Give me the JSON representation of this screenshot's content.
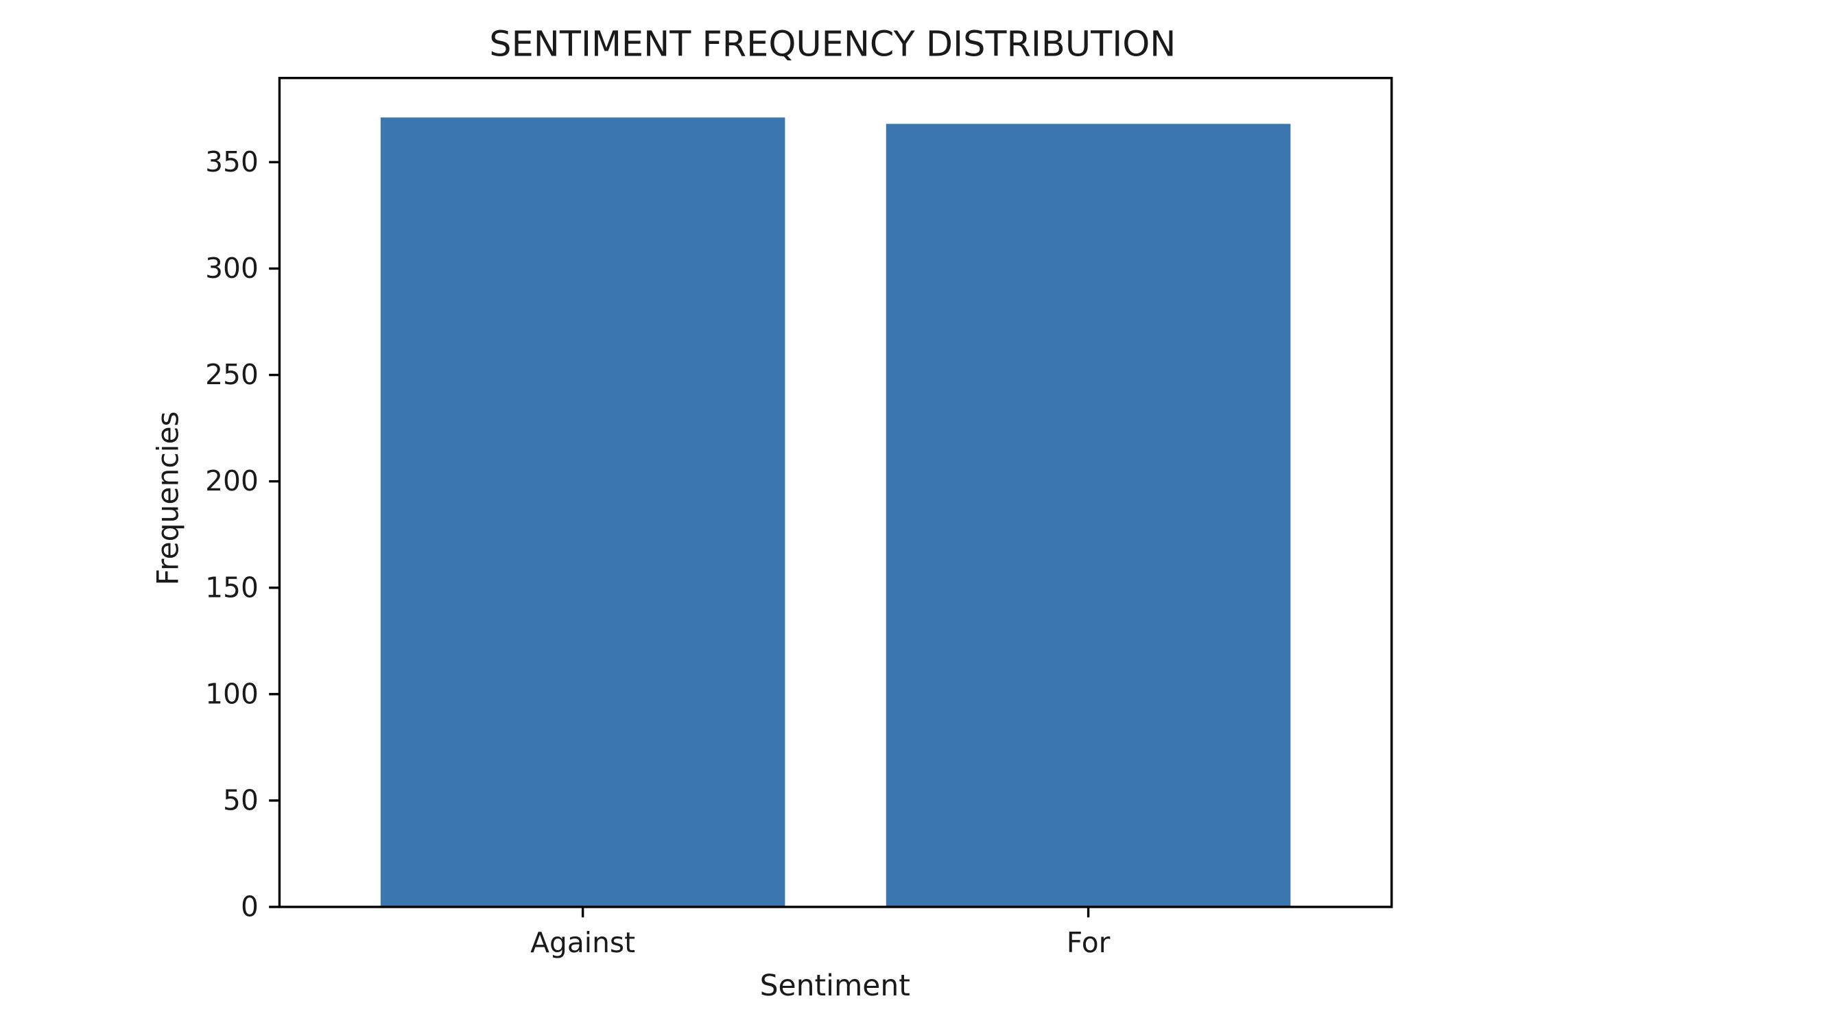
{
  "chart_data": {
    "type": "bar",
    "title": "SENTIMENT FREQUENCY DISTRIBUTION",
    "xlabel": "Sentiment",
    "ylabel": "Frequencies",
    "categories": [
      "Against",
      "For"
    ],
    "values": [
      371,
      368
    ],
    "ylim": [
      0,
      389.55
    ],
    "yticks": [
      0,
      50,
      100,
      150,
      200,
      250,
      300,
      350
    ],
    "grid": false,
    "bar_color": "#3c76ae"
  }
}
